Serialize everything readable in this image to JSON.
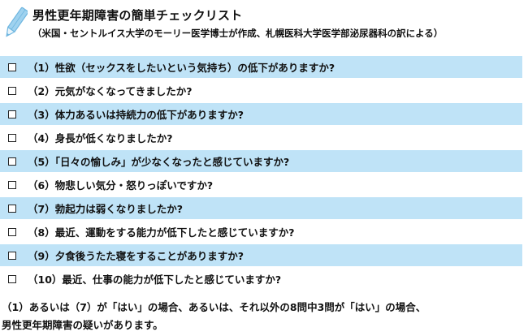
{
  "header": {
    "icon": "pencil-icon",
    "title": "男性更年期障害の簡単チェックリスト",
    "subtitle": "（米国・セントルイス大学のモーリー医学博士が作成、札幌医科大学医学部泌尿器科の訳による）"
  },
  "items": [
    {
      "label": "（1）性欲（セックスをしたいという気持ち）の低下がありますか?"
    },
    {
      "label": "（2）元気がなくなってきましたか?"
    },
    {
      "label": "（3）体力あるいは持続力の低下がありますか?"
    },
    {
      "label": "（4）身長が低くなりましたか?"
    },
    {
      "label": "（5）「日々の愉しみ」が少なくなったと感じていますか?"
    },
    {
      "label": "（6）物悲しい気分・怒りっぽいですか?"
    },
    {
      "label": "（7）勃起力は弱くなりましたか?"
    },
    {
      "label": "（8）最近、運動をする能力が低下したと感じていますか?"
    },
    {
      "label": "（9）夕食後うたた寝をすることがありますか?"
    },
    {
      "label": "（10）最近、仕事の能力が低下したと感じていますか?"
    }
  ],
  "footer": {
    "line1": "（1）あるいは（7）が「はい」の場合、あるいは、それ以外の8問中3問が「はい」の場合、",
    "line2": "男性更年期障害の疑いがあります。"
  },
  "colors": {
    "row_shade": "#bfe3f7",
    "pencil_body": "#9fd2ef",
    "pencil_outline": "#6fb6e0"
  }
}
